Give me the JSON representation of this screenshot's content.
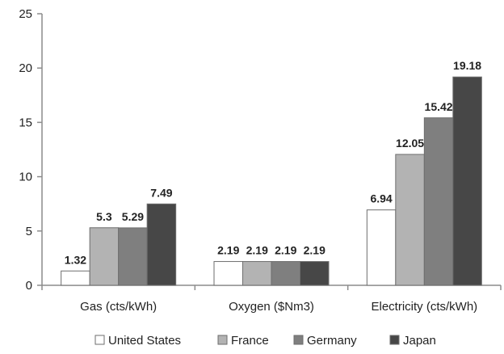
{
  "chart_data": {
    "type": "bar",
    "title": "",
    "xlabel": "",
    "ylabel": "",
    "ylim": [
      0,
      25
    ],
    "yticks": [
      0,
      5,
      10,
      15,
      20,
      25
    ],
    "grid": false,
    "legend_position": "bottom",
    "categories": [
      "Gas (cts/kWh)",
      "Oxygen ($Nm3)",
      "Electricity (cts/kWh)"
    ],
    "series": [
      {
        "name": "United States",
        "color": "#ffffff",
        "values": [
          1.32,
          2.19,
          6.94
        ],
        "labels": [
          "1.32",
          "2.19",
          "6.94"
        ]
      },
      {
        "name": "France",
        "color": "#b3b3b3",
        "values": [
          5.3,
          2.19,
          12.05
        ],
        "labels": [
          "5.3",
          "2.19",
          "12.05"
        ]
      },
      {
        "name": "Germany",
        "color": "#7f7f7f",
        "values": [
          5.29,
          2.19,
          15.42
        ],
        "labels": [
          "5.29",
          "2.19",
          "15.42"
        ]
      },
      {
        "name": "Japan",
        "color": "#474747",
        "values": [
          7.49,
          2.19,
          19.18
        ],
        "labels": [
          "7.49",
          "2.19",
          "19.18"
        ]
      }
    ]
  }
}
